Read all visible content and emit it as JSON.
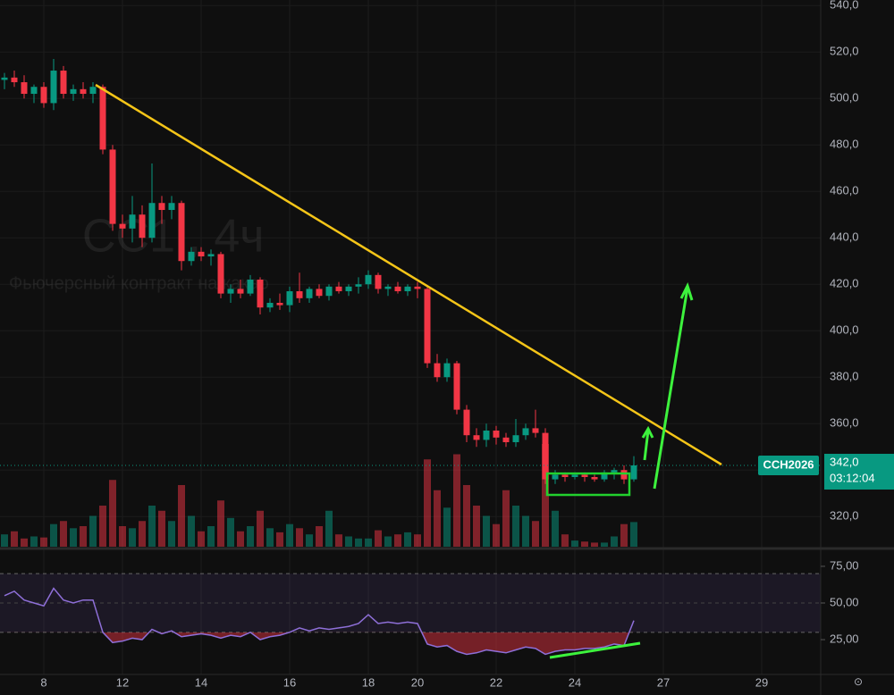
{
  "chart_data": {
    "type": "candlestick",
    "title": "CC1!, 4ч",
    "subtitle": "Фьючерсный контракт на какао",
    "symbol": "CCH2026",
    "last_price": {
      "value": 342,
      "label": "342,0"
    },
    "countdown": "03:12:04",
    "categories": [
      null,
      null,
      null,
      null,
      "8",
      null,
      null,
      null,
      null,
      null,
      null,
      null,
      "12",
      null,
      null,
      null,
      null,
      null,
      null,
      null,
      "14",
      null,
      null,
      null,
      null,
      null,
      null,
      null,
      null,
      "16",
      null,
      null,
      null,
      null,
      null,
      null,
      null,
      "18",
      null,
      null,
      null,
      null,
      "20",
      null,
      null,
      null,
      null,
      null,
      null,
      null,
      "22",
      null,
      null,
      null,
      null,
      null,
      null,
      null,
      "24",
      null,
      null,
      null,
      null,
      null,
      null,
      null,
      null,
      "27",
      null,
      null,
      null,
      null,
      null,
      null,
      null,
      null,
      null,
      "29",
      null,
      null,
      null,
      null
    ],
    "open": [
      508,
      509,
      507,
      502,
      505,
      498,
      512,
      502,
      504,
      502,
      505,
      478,
      446,
      444,
      450,
      440,
      455,
      452,
      455,
      430,
      434,
      432,
      433,
      416,
      418,
      416,
      422,
      410,
      412,
      411,
      417,
      414,
      418,
      415,
      419,
      417,
      419,
      420,
      424,
      418,
      419,
      417,
      419,
      418,
      386,
      380,
      386,
      366,
      355,
      353,
      357,
      354,
      352,
      355,
      358,
      356,
      336,
      338,
      337,
      338,
      337,
      336,
      339,
      340,
      336,
      null,
      null,
      null,
      null,
      null,
      null,
      null,
      null,
      null,
      null,
      null,
      null,
      null,
      null,
      null,
      null,
      null
    ],
    "high": [
      511,
      512,
      510,
      506,
      507,
      517,
      514,
      506,
      507,
      507,
      506,
      480,
      450,
      458,
      454,
      472,
      458,
      458,
      456,
      436,
      436,
      435,
      434,
      420,
      422,
      424,
      423,
      414,
      416,
      419,
      425,
      419,
      420,
      420,
      421,
      420,
      423,
      426,
      425,
      420,
      421,
      420,
      421,
      419,
      390,
      388,
      387,
      368,
      358,
      360,
      359,
      356,
      362,
      360,
      366,
      358,
      340,
      339,
      339,
      339,
      338,
      340,
      341,
      342,
      346,
      null,
      null,
      null,
      null,
      null,
      null,
      null,
      null,
      null,
      null,
      null,
      null,
      null,
      null,
      null,
      null,
      null
    ],
    "low": [
      504,
      505,
      500,
      498,
      496,
      495,
      500,
      499,
      500,
      498,
      476,
      443,
      440,
      438,
      436,
      438,
      446,
      448,
      426,
      428,
      430,
      428,
      414,
      412,
      414,
      415,
      407,
      408,
      409,
      408,
      412,
      412,
      414,
      413,
      416,
      415,
      416,
      418,
      416,
      415,
      416,
      415,
      414,
      384,
      378,
      378,
      364,
      352,
      350,
      350,
      351,
      350,
      350,
      353,
      354,
      334,
      334,
      335,
      336,
      335,
      335,
      335,
      336,
      334,
      335,
      null,
      null,
      null,
      null,
      null,
      null,
      null,
      null,
      null,
      null,
      null,
      null,
      null,
      null,
      null,
      null,
      null
    ],
    "close": [
      509,
      507,
      502,
      505,
      498,
      512,
      502,
      504,
      502,
      505,
      478,
      446,
      444,
      450,
      440,
      455,
      452,
      455,
      430,
      434,
      432,
      433,
      416,
      418,
      416,
      422,
      410,
      412,
      411,
      417,
      414,
      418,
      415,
      419,
      417,
      419,
      420,
      424,
      418,
      419,
      417,
      419,
      418,
      386,
      380,
      386,
      366,
      355,
      353,
      357,
      354,
      352,
      355,
      358,
      356,
      336,
      338,
      337,
      338,
      337,
      336,
      339,
      340,
      336,
      342,
      null,
      null,
      null,
      null,
      null,
      null,
      null,
      null,
      null,
      null,
      null,
      null,
      null,
      null,
      null,
      null,
      null
    ],
    "volume": [
      12,
      15,
      8,
      10,
      9,
      22,
      25,
      18,
      20,
      30,
      40,
      65,
      20,
      18,
      25,
      40,
      35,
      25,
      60,
      30,
      15,
      20,
      45,
      28,
      15,
      20,
      35,
      18,
      14,
      22,
      18,
      12,
      20,
      35,
      12,
      10,
      8,
      8,
      16,
      10,
      12,
      14,
      12,
      85,
      55,
      38,
      90,
      60,
      40,
      30,
      22,
      55,
      40,
      30,
      25,
      100,
      35,
      12,
      6,
      5,
      4,
      4,
      10,
      22,
      24,
      null,
      null,
      null,
      null,
      null,
      null,
      null,
      null,
      null,
      null,
      null,
      null,
      null,
      null,
      null,
      null,
      null
    ],
    "vlim": [
      0,
      100
    ],
    "rsi": [
      55,
      58,
      52,
      50,
      48,
      60,
      52,
      50,
      52,
      52,
      30,
      23,
      24,
      26,
      25,
      32,
      29,
      31,
      27,
      28,
      29,
      28,
      26,
      28,
      27,
      30,
      25,
      27,
      28,
      30,
      33,
      31,
      33,
      32,
      33,
      34,
      36,
      42,
      36,
      37,
      36,
      37,
      36,
      22,
      20,
      21,
      17,
      15,
      16,
      18,
      17,
      16,
      18,
      20,
      19,
      15,
      17,
      18,
      18,
      19,
      19,
      20,
      22,
      21,
      38,
      null,
      null,
      null,
      null,
      null,
      null,
      null,
      null,
      null,
      null,
      null,
      null,
      null,
      null,
      null,
      null,
      null
    ],
    "rsi_upper": 70,
    "rsi_lower": 30,
    "up_color": "#089981",
    "down_color": "#f23645",
    "rsi_color": "#8e6fd8",
    "ylim": [
      307.0,
      542.4
    ],
    "yticks": [
      {
        "value": 320,
        "label": "320,0"
      },
      {
        "value": 340,
        "label": "340,0"
      },
      {
        "value": 360,
        "label": "360,0"
      },
      {
        "value": 380,
        "label": "380,0"
      },
      {
        "value": 400,
        "label": "400,0"
      },
      {
        "value": 420,
        "label": "420,0"
      },
      {
        "value": 440,
        "label": "440,0"
      },
      {
        "value": 460,
        "label": "460,0"
      },
      {
        "value": 480,
        "label": "480,0"
      },
      {
        "value": 500,
        "label": "500,0"
      },
      {
        "value": 520,
        "label": "520,0"
      },
      {
        "value": 540,
        "label": "540,0"
      }
    ],
    "rsilim": [
      4.3,
      83.5
    ],
    "rsiticks": [
      {
        "value": 25,
        "label": "25,00"
      },
      {
        "value": 50,
        "label": "50,00"
      },
      {
        "value": 75,
        "label": "75,00"
      }
    ],
    "grid": true
  }
}
